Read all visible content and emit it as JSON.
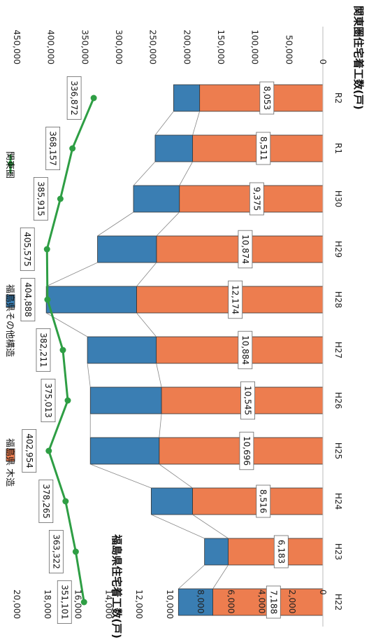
{
  "chart_data": {
    "type": "bar",
    "orientation": "rotated-90-clockwise",
    "categories": [
      "H22",
      "H23",
      "H24",
      "H25",
      "H26",
      "H27",
      "H28",
      "H29",
      "H30",
      "R1",
      "R2"
    ],
    "series": [
      {
        "name": "福島県 木造",
        "kind": "stacked-bar",
        "axis": "left",
        "color": "#ED7D4F",
        "values": [
          7188,
          6183,
          8516,
          10696,
          10545,
          10884,
          12174,
          10874,
          9375,
          8511,
          8053
        ]
      },
      {
        "name": "福島県その他構造",
        "kind": "stacked-bar",
        "axis": "left",
        "color": "#3A7EB3",
        "values": [
          2250,
          1550,
          2700,
          4500,
          4650,
          4500,
          5900,
          3850,
          3000,
          2450,
          1700
        ]
      },
      {
        "name": "関東圏",
        "kind": "line",
        "axis": "right",
        "color": "#2E9E44",
        "values": [
          351101,
          363322,
          378265,
          402954,
          375013,
          382211,
          404888,
          405575,
          385915,
          368157,
          336872
        ]
      }
    ],
    "left_axis": {
      "label": "福島県住宅着工数(戸)",
      "ticks": [
        "0",
        "2,000",
        "4,000",
        "6,000",
        "8,000",
        "10,000",
        "12,000",
        "14,000",
        "16,000",
        "18,000",
        "20,000"
      ],
      "range": [
        0,
        20000
      ]
    },
    "right_axis": {
      "label": "関東圏住宅着工数(戸)",
      "ticks": [
        "0",
        "50,000",
        "100,000",
        "150,000",
        "200,000",
        "250,000",
        "300,000",
        "350,000",
        "400,000",
        "450,000"
      ],
      "range": [
        0,
        450000
      ]
    },
    "bar_labels": [
      "7,188",
      "6,183",
      "8,516",
      "10,696",
      "10,545",
      "10,884",
      "12,174",
      "10,874",
      "9,375",
      "8,511",
      "8,053"
    ],
    "line_labels": [
      "351,101",
      "363,322",
      "378,265",
      "402,954",
      "375,013",
      "382,211",
      "404,888",
      "405,575",
      "385,915",
      "368,157",
      "336,872"
    ],
    "series_lines": true,
    "grid": false,
    "legend_position": "bottom"
  }
}
